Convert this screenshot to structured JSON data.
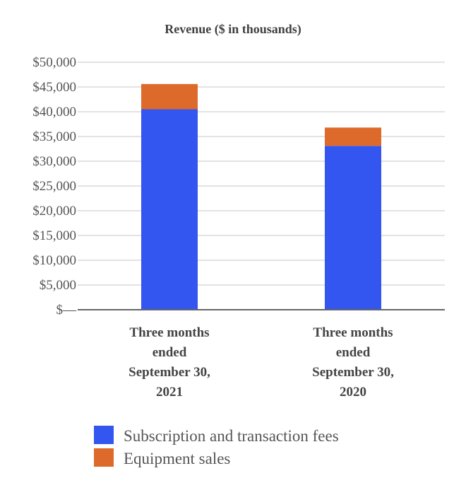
{
  "chart_data": {
    "type": "bar",
    "stacked": true,
    "title": "Revenue ($ in thousands)",
    "xlabel": "",
    "ylabel": "",
    "categories": [
      [
        "Three months",
        "ended",
        "September 30,",
        "2021"
      ],
      [
        "Three months",
        "ended",
        "September 30,",
        "2020"
      ]
    ],
    "series": [
      {
        "name": "Subscription and transaction fees",
        "color": "#3355f0",
        "values": [
          40500,
          33100
        ]
      },
      {
        "name": "Equipment sales",
        "color": "#dd6a2a",
        "values": [
          5100,
          3700
        ]
      }
    ],
    "yticks": [
      "$—",
      "$5,000",
      "$10,000",
      "$15,000",
      "$20,000",
      "$25,000",
      "$30,000",
      "$35,000",
      "$40,000",
      "$45,000",
      "$50,000"
    ],
    "ylim": [
      0,
      50000
    ],
    "grid": true,
    "legend_position": "bottom"
  }
}
